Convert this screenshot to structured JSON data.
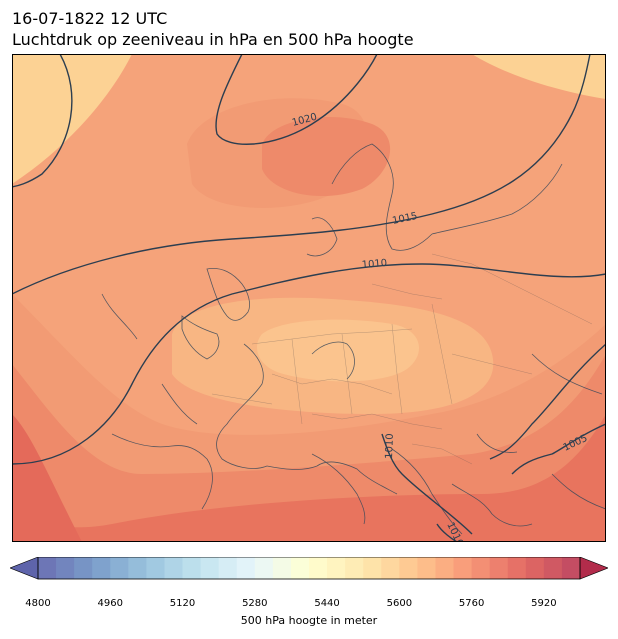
{
  "title_line1": "16-07-1822 12 UTC",
  "title_line2": "Luchtdruk op zeeniveau in hPa en 500 hPa hoogte",
  "isobars": {
    "labels": [
      {
        "text": "1020",
        "value": 1020
      },
      {
        "text": "1015",
        "value": 1015
      },
      {
        "text": "1010",
        "value": 1010
      },
      {
        "text": "1010",
        "value": 1010
      },
      {
        "text": "1010",
        "value": 1010
      },
      {
        "text": "1005",
        "value": 1005
      }
    ],
    "line_color": "#2c3e50"
  },
  "colorbar": {
    "label": "500 hPa hoogte in meter",
    "min": 4800,
    "max": 6000,
    "step": 40,
    "ticks": [
      "4800",
      "4960",
      "5120",
      "5280",
      "5440",
      "5600",
      "5760",
      "5920"
    ],
    "extend": "both",
    "colormap": "RdYlBu_r"
  }
}
